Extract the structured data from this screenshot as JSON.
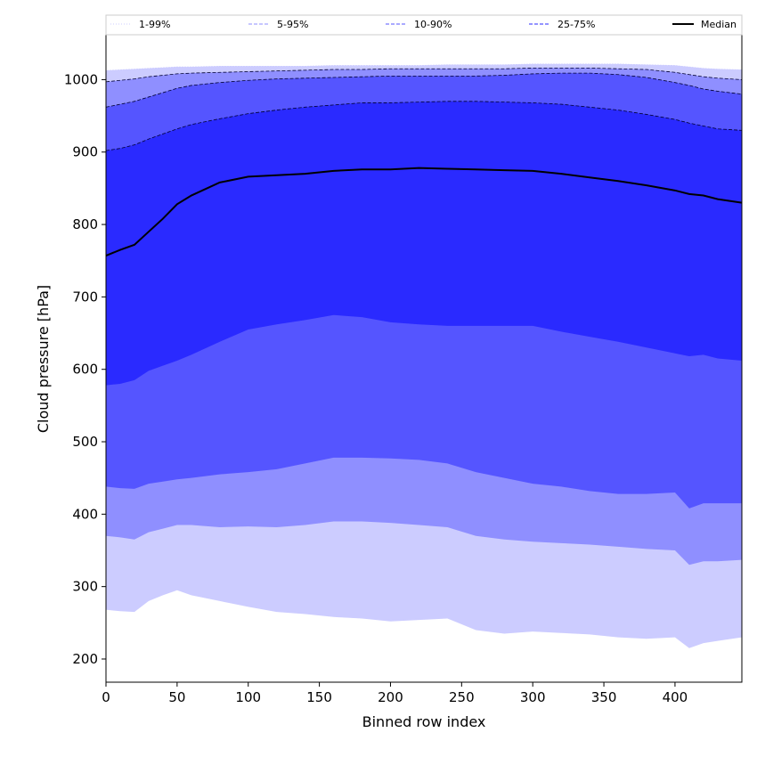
{
  "chart_data": {
    "type": "area",
    "xlabel": "Binned row index",
    "ylabel": "Cloud pressure [hPa]",
    "xlim": [
      0,
      447
    ],
    "ylim": [
      168,
      1062
    ],
    "xticks": [
      0,
      50,
      100,
      150,
      200,
      250,
      300,
      350,
      400
    ],
    "yticks": [
      200,
      300,
      400,
      500,
      600,
      700,
      800,
      900,
      1000
    ],
    "grid": false,
    "legend_position": "top",
    "x": [
      0,
      10,
      20,
      30,
      40,
      50,
      60,
      80,
      100,
      120,
      140,
      160,
      180,
      200,
      220,
      240,
      260,
      280,
      300,
      320,
      340,
      360,
      380,
      400,
      410,
      420,
      430,
      447
    ],
    "bands": [
      {
        "name": "1-99%",
        "color": "#ccccff",
        "line_style": "dotted",
        "lower": [
          268,
          266,
          265,
          280,
          288,
          295,
          288,
          280,
          272,
          265,
          262,
          258,
          256,
          252,
          254,
          256,
          240,
          235,
          238,
          236,
          234,
          230,
          228,
          230,
          215,
          222,
          225,
          230
        ],
        "upper": [
          1013,
          1014,
          1015,
          1016,
          1017,
          1018,
          1018,
          1019,
          1019,
          1019,
          1019,
          1020,
          1020,
          1020,
          1020,
          1021,
          1021,
          1021,
          1022,
          1022,
          1022,
          1022,
          1021,
          1020,
          1018,
          1016,
          1015,
          1014
        ]
      },
      {
        "name": "5-95%",
        "color": "#8f8fff",
        "line_style": "dashed",
        "lower": [
          370,
          368,
          365,
          375,
          380,
          385,
          385,
          382,
          383,
          382,
          385,
          390,
          390,
          388,
          385,
          382,
          370,
          365,
          362,
          360,
          358,
          355,
          352,
          350,
          330,
          335,
          335,
          337
        ],
        "upper": [
          997,
          999,
          1001,
          1004,
          1006,
          1008,
          1009,
          1010,
          1011,
          1012,
          1013,
          1014,
          1014,
          1015,
          1015,
          1015,
          1015,
          1015,
          1016,
          1016,
          1016,
          1015,
          1014,
          1010,
          1007,
          1004,
          1002,
          1000
        ]
      },
      {
        "name": "10-90%",
        "color": "#5555ff",
        "line_style": "dashed",
        "lower": [
          438,
          436,
          435,
          442,
          445,
          448,
          450,
          455,
          458,
          462,
          470,
          478,
          478,
          477,
          475,
          470,
          458,
          450,
          442,
          438,
          432,
          428,
          428,
          430,
          408,
          415,
          415,
          415
        ],
        "upper": [
          962,
          966,
          970,
          976,
          982,
          988,
          992,
          996,
          999,
          1001,
          1002,
          1003,
          1004,
          1005,
          1005,
          1005,
          1005,
          1006,
          1008,
          1009,
          1009,
          1007,
          1003,
          996,
          992,
          987,
          984,
          980
        ]
      },
      {
        "name": "25-75%",
        "color": "#2a2aff",
        "line_style": "dashed",
        "lower": [
          578,
          580,
          585,
          598,
          605,
          612,
          620,
          638,
          655,
          662,
          668,
          675,
          672,
          665,
          662,
          660,
          660,
          660,
          660,
          652,
          645,
          638,
          630,
          622,
          618,
          620,
          615,
          612
        ],
        "upper": [
          902,
          905,
          910,
          918,
          925,
          932,
          938,
          946,
          953,
          958,
          962,
          965,
          968,
          968,
          969,
          970,
          970,
          969,
          968,
          966,
          962,
          958,
          952,
          945,
          940,
          936,
          932,
          930
        ]
      }
    ],
    "series": [
      {
        "name": "Median",
        "color": "#000000",
        "line_style": "solid",
        "values": [
          757,
          765,
          772,
          790,
          808,
          828,
          840,
          858,
          866,
          868,
          870,
          874,
          876,
          876,
          878,
          877,
          876,
          875,
          874,
          870,
          865,
          860,
          854,
          847,
          842,
          840,
          835,
          830
        ]
      }
    ]
  }
}
